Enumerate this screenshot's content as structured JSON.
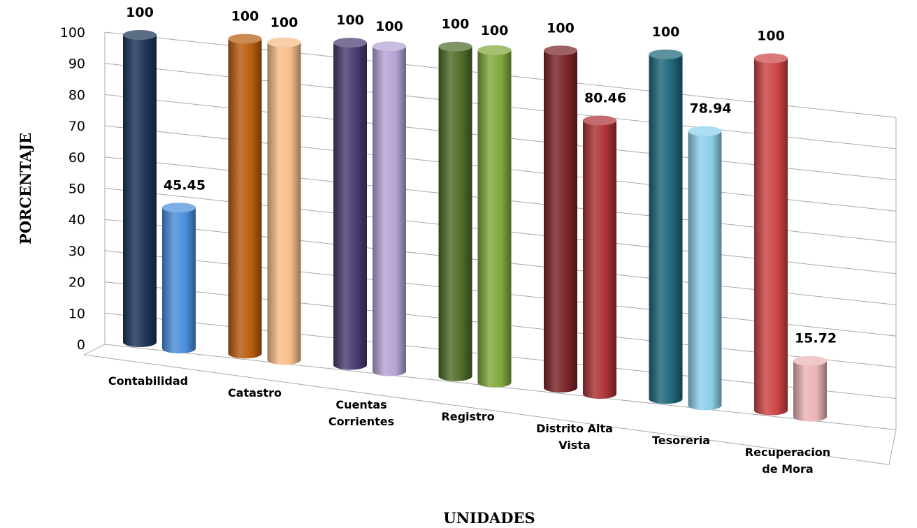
{
  "chart_data": {
    "type": "bar",
    "style": "3d-cylinder",
    "xlabel": "UNIDADES",
    "ylabel": "PORCENTAJE",
    "ylim": [
      0,
      100
    ],
    "yticks": [
      0,
      10,
      20,
      30,
      40,
      50,
      60,
      70,
      80,
      90,
      100
    ],
    "grid": true,
    "legend": "none",
    "categories": [
      {
        "label": [
          "Contabilidad"
        ],
        "values": [
          100,
          45.45
        ],
        "data_labels": [
          "100",
          "45.45"
        ],
        "colors": [
          "#1c3557",
          "#4a8fdb"
        ]
      },
      {
        "label": [
          "Catastro"
        ],
        "values": [
          100,
          100
        ],
        "data_labels": [
          "100",
          "100"
        ],
        "colors": [
          "#b85c10",
          "#f7bd88"
        ]
      },
      {
        "label": [
          "Cuentas",
          "Corrientes"
        ],
        "values": [
          100,
          100
        ],
        "data_labels": [
          "100",
          "100"
        ],
        "colors": [
          "#4a3a6e",
          "#b4a4d4"
        ]
      },
      {
        "label": [
          "Registro"
        ],
        "values": [
          100,
          100
        ],
        "data_labels": [
          "100",
          "100"
        ],
        "colors": [
          "#4f6b2a",
          "#80a83d"
        ]
      },
      {
        "label": [
          "Distrito Alta",
          "Vista"
        ],
        "values": [
          100,
          80.46
        ],
        "data_labels": [
          "100",
          "80.46"
        ],
        "colors": [
          "#7a2428",
          "#ab3234"
        ]
      },
      {
        "label": [
          "Tesoreria"
        ],
        "values": [
          100,
          78.94
        ],
        "data_labels": [
          "100",
          "78.94"
        ],
        "colors": [
          "#1f6678",
          "#8cd0ea"
        ]
      },
      {
        "label": [
          "Recuperacion",
          "de Mora"
        ],
        "values": [
          100,
          15.72
        ],
        "data_labels": [
          "100",
          "15.72"
        ],
        "colors": [
          "#cc4545",
          "#eab2b6"
        ]
      }
    ]
  }
}
